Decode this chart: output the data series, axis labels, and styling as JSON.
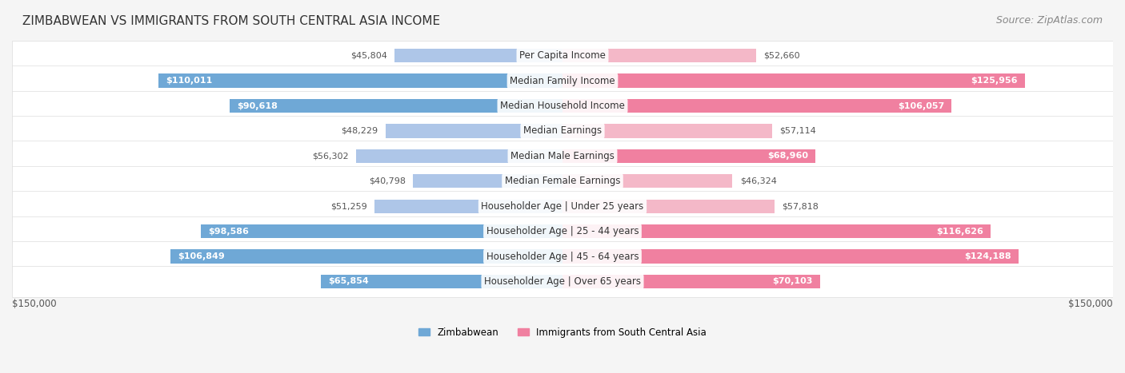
{
  "title": "ZIMBABWEAN VS IMMIGRANTS FROM SOUTH CENTRAL ASIA INCOME",
  "source": "Source: ZipAtlas.com",
  "categories": [
    "Per Capita Income",
    "Median Family Income",
    "Median Household Income",
    "Median Earnings",
    "Median Male Earnings",
    "Median Female Earnings",
    "Householder Age | Under 25 years",
    "Householder Age | 25 - 44 years",
    "Householder Age | 45 - 64 years",
    "Householder Age | Over 65 years"
  ],
  "zimbabwean_values": [
    45804,
    110011,
    90618,
    48229,
    56302,
    40798,
    51259,
    98586,
    106849,
    65854
  ],
  "immigrant_values": [
    52660,
    125956,
    106057,
    57114,
    68960,
    46324,
    57818,
    116626,
    124188,
    70103
  ],
  "zimbabwean_labels": [
    "$45,804",
    "$110,011",
    "$90,618",
    "$48,229",
    "$56,302",
    "$40,798",
    "$51,259",
    "$98,586",
    "$106,849",
    "$65,854"
  ],
  "immigrant_labels": [
    "$52,660",
    "$125,956",
    "$106,057",
    "$57,114",
    "$68,960",
    "$46,324",
    "$57,818",
    "$116,626",
    "$124,188",
    "$70,103"
  ],
  "zimbabwean_color_light": "#aec6e8",
  "zimbabwean_color_dark": "#6fa8d6",
  "immigrant_color_light": "#f4b8c8",
  "immigrant_color_dark": "#f080a0",
  "max_value": 150000,
  "legend_zimbabwean": "Zimbabwean",
  "legend_immigrant": "Immigrants from South Central Asia",
  "x_label_left": "$150,000",
  "x_label_right": "$150,000",
  "background_color": "#f5f5f5",
  "row_bg_color": "#ffffff",
  "title_fontsize": 11,
  "source_fontsize": 9,
  "label_fontsize": 8.5,
  "bar_label_fontsize": 8
}
